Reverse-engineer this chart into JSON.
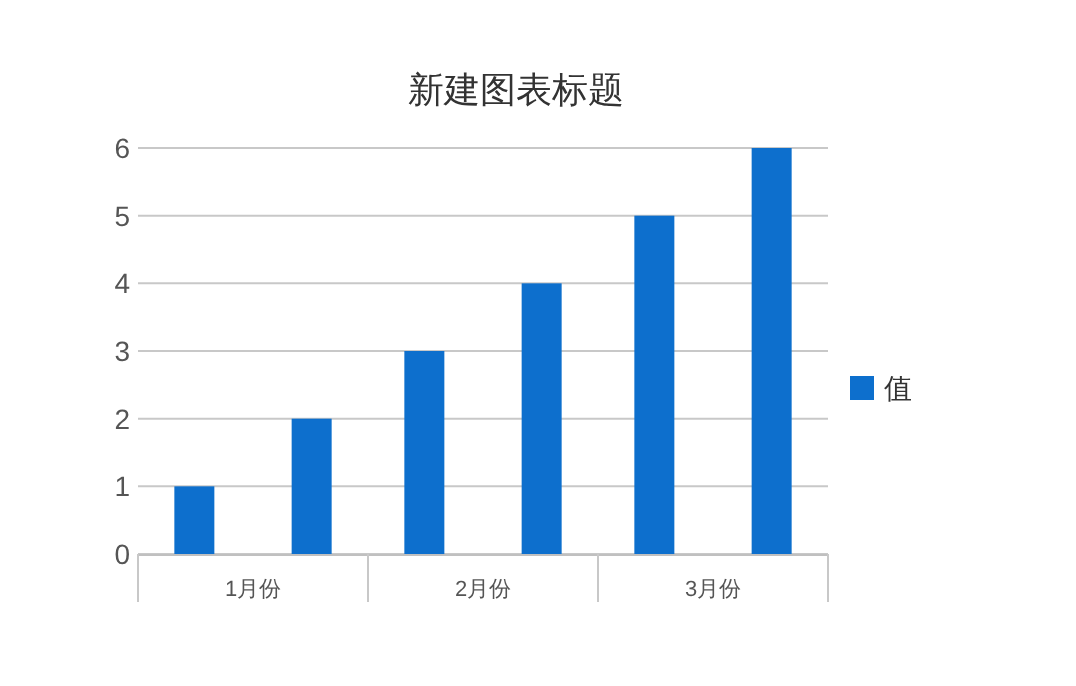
{
  "chart_data": {
    "type": "bar",
    "title": "新建图表标题",
    "categories": [
      "1月份",
      "2月份",
      "3月份"
    ],
    "series": [
      {
        "name": "值",
        "color": "#0d6fcd",
        "values": [
          1,
          3,
          5
        ]
      },
      {
        "color": "#0d6fcd",
        "values": [
          2,
          4,
          6
        ]
      }
    ],
    "ylim": [
      0,
      6
    ],
    "yticks": [
      0,
      1,
      2,
      3,
      4,
      5,
      6
    ],
    "grid": "y",
    "legend": "right"
  }
}
